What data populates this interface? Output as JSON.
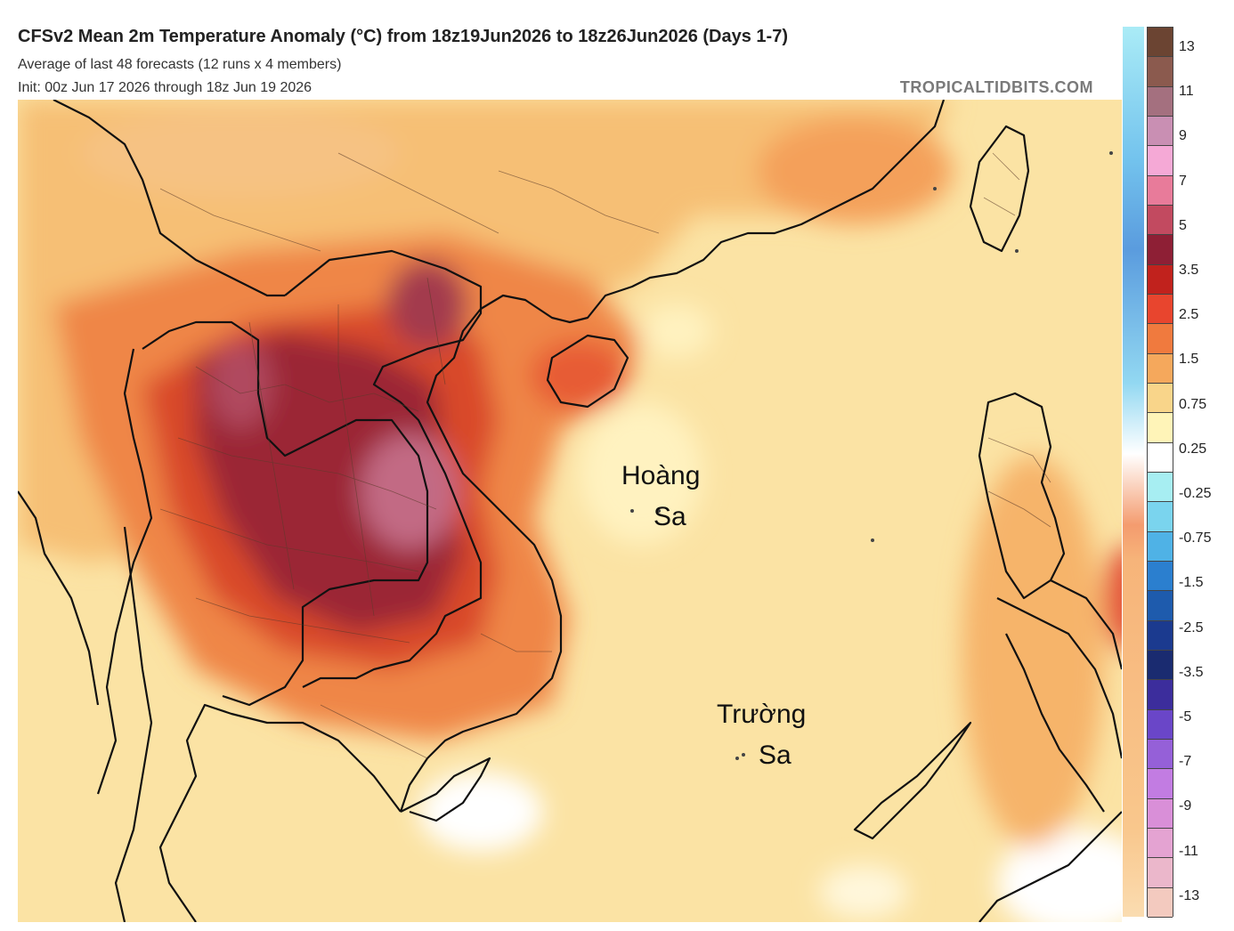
{
  "header": {
    "title": "CFSv2 Mean 2m Temperature Anomaly (°C) from 18z19Jun2026 to 18z26Jun2026 (Days 1-7)",
    "subtitle1": "Average of last 48 forecasts (12 runs x 4 members)",
    "subtitle2": "Init: 00z Jun 17 2026 through 18z Jun 19 2026",
    "brand": "TROPICALTIDBITS.COM"
  },
  "map": {
    "labels": {
      "hoang_line1": "Hoàng",
      "hoang_line2": "Sa",
      "truong_line1": "Trường",
      "truong_line2": "Sa"
    }
  },
  "colorbar": {
    "labels": [
      "13",
      "11",
      "9",
      "7",
      "5",
      "3.5",
      "2.5",
      "1.5",
      "0.75",
      "0.25",
      "-0.25",
      "-0.75",
      "-1.5",
      "-2.5",
      "-3.5",
      "-5",
      "-7",
      "-9",
      "-11",
      "-13"
    ],
    "colors": [
      "#6b4432",
      "#8b5a4e",
      "#a4707f",
      "#c98fb3",
      "#f5a9d6",
      "#e87b9a",
      "#c24a60",
      "#8e1f35",
      "#c1221d",
      "#e8452e",
      "#f07a3e",
      "#f5a85c",
      "#f9d58a",
      "#fff4b8",
      "#ffffff",
      "#a7eef2",
      "#7ad4ee",
      "#4fb2e6",
      "#2b7fcf",
      "#1e5bad",
      "#1b3a8f",
      "#1a2b70",
      "#3c2d9c",
      "#6a46c8",
      "#9560d8",
      "#c27ce2",
      "#d98fd8",
      "#e4a3d2",
      "#ebb7cb",
      "#f3cabf"
    ]
  }
}
